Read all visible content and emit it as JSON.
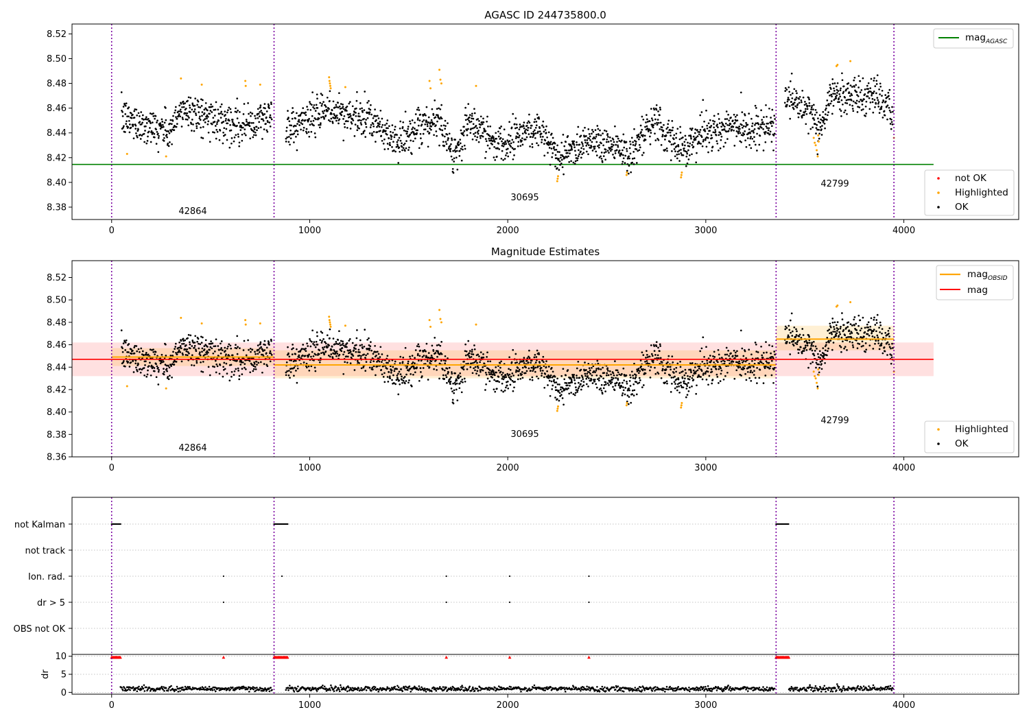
{
  "colors": {
    "ok": "#000000",
    "highlighted": "#ffa500",
    "not_ok": "#ff0000",
    "mag_agasc": "#008000",
    "mag": "#ff0000",
    "mag_obsid": "#ffa500",
    "obsid_boundary": "#7a00a0",
    "flag_points": "#000000",
    "dr_markers": "#ff0000"
  },
  "chart_data": [
    {
      "type": "scatter",
      "title": "AGASC ID 244735800.0",
      "xlim": [
        -200,
        4580
      ],
      "ylim": [
        8.37,
        8.528
      ],
      "x_ticks": [
        "0",
        "1000",
        "2000",
        "3000",
        "4000"
      ],
      "y_ticks": [
        "8.38",
        "8.40",
        "8.42",
        "8.44",
        "8.46",
        "8.48",
        "8.50",
        "8.52"
      ],
      "obsid_boundaries": [
        0,
        820,
        3355,
        3950
      ],
      "obsid_labels": [
        {
          "label": "42864",
          "x": 410,
          "y": 8.377
        },
        {
          "label": "30695",
          "x": 2087,
          "y": 8.388
        },
        {
          "label": "42799",
          "x": 3652,
          "y": 8.399
        }
      ],
      "hlines": [
        {
          "name": "mag",
          "name_subscript": "AGASC",
          "y": 8.4145,
          "x": [
            -200,
            4150
          ]
        }
      ],
      "legend": {
        "position": "top-right",
        "lines": [
          {
            "name": "mag",
            "name_subscript": "AGASC"
          }
        ]
      },
      "legend_points": {
        "position": "right",
        "entries": [
          "not OK",
          "Highlighted",
          "OK"
        ]
      },
      "series": [
        {
          "name": "OK",
          "kind": "points",
          "segments": [
            {
              "x": [
                50,
                810
              ],
              "trend": [
                [
                  50,
                  8.452
                ],
                [
                  300,
                  8.441
                ],
                [
                  360,
                  8.46
                ],
                [
                  500,
                  8.452
                ],
                [
                  700,
                  8.446
                ],
                [
                  810,
                  8.455
                ]
              ],
              "noise": 0.0075
            },
            {
              "x": [
                880,
                3350
              ],
              "trend": [
                [
                  880,
                  8.444
                ],
                [
                  1100,
                  8.458
                ],
                [
                  1300,
                  8.45
                ],
                [
                  1450,
                  8.432
                ],
                [
                  1650,
                  8.452
                ],
                [
                  1730,
                  8.422
                ],
                [
                  1800,
                  8.448
                ],
                [
                  1950,
                  8.432
                ],
                [
                  2150,
                  8.445
                ],
                [
                  2250,
                  8.42
                ],
                [
                  2400,
                  8.435
                ],
                [
                  2550,
                  8.43
                ],
                [
                  2620,
                  8.423
                ],
                [
                  2750,
                  8.45
                ],
                [
                  2850,
                  8.428
                ],
                [
                  3100,
                  8.445
                ],
                [
                  3350,
                  8.442
                ]
              ],
              "noise": 0.0075
            },
            {
              "x": [
                3400,
                3945
              ],
              "trend": [
                [
                  3400,
                  8.47
                ],
                [
                  3540,
                  8.455
                ],
                [
                  3570,
                  8.44
                ],
                [
                  3640,
                  8.47
                ],
                [
                  3800,
                  8.47
                ],
                [
                  3850,
                  8.474
                ],
                [
                  3945,
                  8.452
                ]
              ],
              "noise": 0.0075
            }
          ]
        },
        {
          "name": "Highlighted",
          "kind": "points",
          "x": [
            78,
            275,
            350,
            455,
            675,
            677,
            750,
            1098,
            1100,
            1102,
            1104,
            1106,
            1180,
            1605,
            1610,
            1655,
            1660,
            1665,
            1840,
            2250,
            2252,
            2254,
            2600,
            2602,
            2875,
            2877,
            2879,
            3545,
            3550,
            3555,
            3560,
            3565,
            3570,
            3568,
            3660,
            3665,
            3730,
            3950
          ],
          "y": [
            8.423,
            8.421,
            8.484,
            8.479,
            8.482,
            8.478,
            8.479,
            8.485,
            8.482,
            8.48,
            8.478,
            8.476,
            8.477,
            8.482,
            8.476,
            8.491,
            8.483,
            8.48,
            8.478,
            8.401,
            8.403,
            8.405,
            8.406,
            8.408,
            8.404,
            8.406,
            8.408,
            8.436,
            8.432,
            8.43,
            8.426,
            8.421,
            8.433,
            8.438,
            8.494,
            8.495,
            8.498,
            8.436
          ]
        },
        {
          "name": "not OK",
          "kind": "points",
          "x": [],
          "y": []
        }
      ]
    },
    {
      "type": "scatter",
      "title": "Magnitude Estimates",
      "xlim": [
        -200,
        4580
      ],
      "ylim": [
        8.36,
        8.535
      ],
      "x_ticks": [
        "0",
        "1000",
        "2000",
        "3000",
        "4000"
      ],
      "y_ticks": [
        "8.36",
        "8.38",
        "8.40",
        "8.42",
        "8.44",
        "8.46",
        "8.48",
        "8.50",
        "8.52"
      ],
      "obsid_boundaries": [
        0,
        820,
        3355,
        3950
      ],
      "obsid_labels": [
        {
          "label": "42864",
          "x": 410,
          "y": 8.366
        },
        {
          "label": "30695",
          "x": 2087,
          "y": 8.378
        },
        {
          "label": "42799",
          "x": 3652,
          "y": 8.391
        }
      ],
      "legend": {
        "position": "top-right",
        "lines": [
          {
            "name": "mag",
            "name_subscript": "OBSID"
          },
          {
            "name": "mag",
            "name_subscript": ""
          }
        ]
      },
      "legend_points": {
        "position": "right",
        "entries": [
          "Highlighted",
          "OK"
        ]
      },
      "bands": [
        {
          "name": "mag",
          "x": [
            -200,
            4150
          ],
          "center": 8.447,
          "low": 8.432,
          "high": 8.462
        },
        {
          "name": "mag OBSID 42864",
          "x": [
            0,
            820
          ],
          "center": 8.449,
          "low": 8.441,
          "high": 8.457
        },
        {
          "name": "mag OBSID 30695",
          "x": [
            820,
            3355
          ],
          "center": 8.442,
          "low": 8.43,
          "high": 8.455
        },
        {
          "name": "mag OBSID 42799",
          "x": [
            3355,
            3950
          ],
          "center": 8.465,
          "low": 8.455,
          "high": 8.477
        }
      ],
      "hlines": [
        {
          "name": "mag",
          "y": 8.447,
          "x": [
            -200,
            4150
          ]
        },
        {
          "name": "mag OBSID",
          "y": 8.449,
          "x": [
            0,
            820
          ]
        },
        {
          "name": "mag OBSID",
          "y": 8.442,
          "x": [
            820,
            3355
          ]
        },
        {
          "name": "mag OBSID",
          "y": 8.465,
          "x": [
            3355,
            3950
          ]
        }
      ]
    },
    {
      "type": "scatter",
      "title": "",
      "xlim": [
        -200,
        4580
      ],
      "x_ticks": [
        "0",
        "1000",
        "2000",
        "3000",
        "4000"
      ],
      "flag_rows": [
        "not Kalman",
        "not track",
        "Ion. rad.",
        "dr > 5",
        "OBS not OK"
      ],
      "obsid_boundaries": [
        0,
        820,
        3355,
        3950
      ],
      "flag_points": [
        {
          "row": "not Kalman",
          "x_ranges": [
            [
              0,
              45
            ],
            [
              820,
              890
            ],
            [
              3355,
              3420
            ]
          ]
        },
        {
          "row": "not track",
          "x_ranges": []
        },
        {
          "row": "Ion. rad.",
          "x": [
            565,
            860,
            1690,
            2010,
            2410
          ]
        },
        {
          "row": "dr > 5",
          "x": [
            565,
            1690,
            2010,
            2410
          ]
        },
        {
          "row": "OBS not OK",
          "x_ranges": []
        }
      ]
    },
    {
      "type": "scatter",
      "title": "",
      "ylabel": "dr",
      "xlim": [
        -200,
        4580
      ],
      "ylim": [
        -0.5,
        10.5
      ],
      "x_ticks": [
        "0",
        "1000",
        "2000",
        "3000",
        "4000"
      ],
      "y_ticks": [
        "0",
        "5",
        "10"
      ],
      "obsid_boundaries": [
        0,
        820,
        3355,
        3950
      ],
      "clipped_markers": {
        "y": 9.7,
        "x_ranges": [
          [
            0,
            45
          ],
          [
            820,
            890
          ],
          [
            3355,
            3420
          ]
        ],
        "x": [
          565,
          1690,
          2010,
          2410
        ]
      },
      "series": [
        {
          "name": "dr",
          "kind": "points",
          "base": 1.0,
          "noise": 0.35,
          "segments": [
            [
              45,
              810
            ],
            [
              880,
              3350
            ],
            [
              3420,
              3945
            ]
          ]
        }
      ]
    }
  ]
}
